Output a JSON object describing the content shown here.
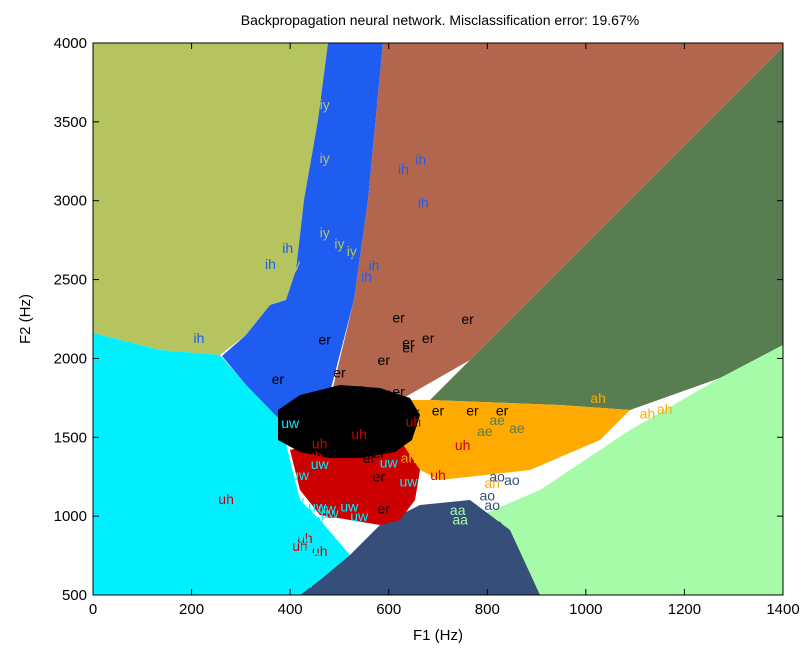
{
  "chart_data": {
    "type": "scatter",
    "title": "Backpropagation neural network. Misclassification error: 19.67%",
    "xlabel": "F1 (Hz)",
    "ylabel": "F2 (Hz)",
    "xlim": [
      0,
      1400
    ],
    "ylim": [
      500,
      4000
    ],
    "xticks": [
      0,
      200,
      400,
      600,
      800,
      1000,
      1200,
      1400
    ],
    "yticks": [
      500,
      1000,
      1500,
      2000,
      2500,
      3000,
      3500,
      4000
    ],
    "grid": false,
    "legend": "none",
    "region_colors": {
      "olive": "#b5c45e",
      "blue": "#1f5cf0",
      "brown": "#b2664e",
      "darkgreen": "#577d50",
      "cyan": "#00f0ff",
      "lightgreen": "#a6fba8",
      "navy": "#364f7a",
      "black": "#000000",
      "red": "#cc0000",
      "orange": "#ffaa00"
    },
    "series": [
      {
        "name": "iy",
        "color": "#b5c45e",
        "points": [
          [
            470,
            3610
          ],
          [
            470,
            3270
          ],
          [
            470,
            2800
          ],
          [
            500,
            2730
          ],
          [
            525,
            2680
          ],
          [
            410,
            2600
          ]
        ]
      },
      {
        "name": "ih",
        "color": "#1f5cf0",
        "points": [
          [
            215,
            2130
          ],
          [
            360,
            2600
          ],
          [
            395,
            2700
          ],
          [
            530,
            2620
          ],
          [
            555,
            2520
          ],
          [
            570,
            2590
          ],
          [
            630,
            3200
          ],
          [
            665,
            3260
          ],
          [
            670,
            2990
          ],
          [
            505,
            2270
          ]
        ]
      },
      {
        "name": "er",
        "color": "#000000",
        "points": [
          [
            375,
            1870
          ],
          [
            400,
            1500
          ],
          [
            470,
            2120
          ],
          [
            500,
            1910
          ],
          [
            505,
            1790
          ],
          [
            535,
            1810
          ],
          [
            555,
            1790
          ],
          [
            575,
            1740
          ],
          [
            590,
            1990
          ],
          [
            590,
            1780
          ],
          [
            620,
            1790
          ],
          [
            620,
            2260
          ],
          [
            640,
            2070
          ],
          [
            640,
            2100
          ],
          [
            680,
            2130
          ],
          [
            760,
            2250
          ],
          [
            650,
            1660
          ],
          [
            650,
            1600
          ],
          [
            610,
            1560
          ],
          [
            700,
            1670
          ],
          [
            770,
            1670
          ],
          [
            830,
            1670
          ],
          [
            580,
            1250
          ],
          [
            560,
            1370
          ],
          [
            580,
            1400
          ],
          [
            510,
            1400
          ],
          [
            590,
            1050
          ]
        ]
      },
      {
        "name": "ah",
        "color": "#ffaa00",
        "points": [
          [
            710,
            1560
          ],
          [
            800,
            1580
          ],
          [
            860,
            1670
          ],
          [
            900,
            1660
          ],
          [
            1025,
            1750
          ],
          [
            1125,
            1650
          ],
          [
            1160,
            1680
          ],
          [
            810,
            1210
          ],
          [
            640,
            1370
          ],
          [
            700,
            1280
          ],
          [
            760,
            1430
          ]
        ]
      },
      {
        "name": "uh",
        "color": "#cc0000",
        "points": [
          [
            270,
            1110
          ],
          [
            450,
            1380
          ],
          [
            460,
            1460
          ],
          [
            540,
            1520
          ],
          [
            530,
            1300
          ],
          [
            560,
            1260
          ],
          [
            610,
            1230
          ],
          [
            610,
            1350
          ],
          [
            630,
            1330
          ],
          [
            700,
            1260
          ],
          [
            750,
            1450
          ],
          [
            650,
            1600
          ],
          [
            440,
            1260
          ],
          [
            430,
            860
          ],
          [
            420,
            810
          ],
          [
            460,
            780
          ],
          [
            480,
            1070
          ],
          [
            490,
            1020
          ]
        ]
      },
      {
        "name": "uw",
        "color": "#00f0ff",
        "points": [
          [
            400,
            1590
          ],
          [
            420,
            1260
          ],
          [
            410,
            1100
          ],
          [
            400,
            1030
          ],
          [
            395,
            940
          ],
          [
            410,
            860
          ],
          [
            420,
            870
          ],
          [
            440,
            800
          ],
          [
            440,
            750
          ],
          [
            455,
            1060
          ],
          [
            475,
            1050
          ],
          [
            450,
            980
          ],
          [
            450,
            940
          ],
          [
            480,
            1020
          ],
          [
            520,
            1060
          ],
          [
            540,
            1000
          ],
          [
            460,
            1330
          ],
          [
            420,
            580
          ],
          [
            430,
            580
          ],
          [
            600,
            1340
          ],
          [
            640,
            1220
          ]
        ]
      },
      {
        "name": "ao",
        "color": "#364f7a",
        "points": [
          [
            710,
            1000
          ],
          [
            730,
            1070
          ],
          [
            750,
            1060
          ],
          [
            745,
            1010
          ],
          [
            770,
            1040
          ],
          [
            810,
            1070
          ],
          [
            820,
            1250
          ],
          [
            850,
            1230
          ],
          [
            800,
            1130
          ],
          [
            750,
            940
          ],
          [
            815,
            950
          ]
        ]
      },
      {
        "name": "ae",
        "color": "#577d50",
        "points": [
          [
            795,
            1540
          ],
          [
            820,
            1610
          ],
          [
            860,
            1560
          ]
        ]
      },
      {
        "name": "aa",
        "color": "#a6fba8",
        "points": [
          [
            740,
            1040
          ],
          [
            745,
            980
          ]
        ]
      }
    ]
  }
}
